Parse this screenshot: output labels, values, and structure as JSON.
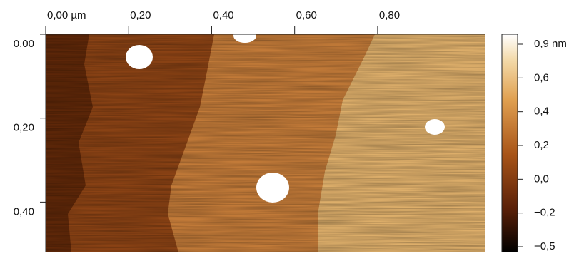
{
  "chart_data": {
    "type": "heatmap",
    "xticks": [
      {
        "value": 0,
        "label": "0,00 µm"
      },
      {
        "value": 0.2,
        "label": "0,20"
      },
      {
        "value": 0.4,
        "label": "0,40"
      },
      {
        "value": 0.6,
        "label": "0,60"
      },
      {
        "value": 0.8,
        "label": "0,80"
      }
    ],
    "xlim": [
      0,
      1.06
    ],
    "yticks": [
      {
        "value": 0,
        "label": "0,00"
      },
      {
        "value": 0.2,
        "label": "0,20"
      },
      {
        "value": 0.4,
        "label": "0,40"
      }
    ],
    "ylim": [
      0,
      0.52
    ],
    "colorbar_ticks": [
      {
        "value": 0.9,
        "label": "0,9 nm"
      },
      {
        "value": 0.6,
        "label": "0,6"
      },
      {
        "value": 0.4,
        "label": "0,4"
      },
      {
        "value": 0.2,
        "label": "0,2"
      },
      {
        "value": 0,
        "label": "0,0"
      },
      {
        "value": -0.2,
        "label": "−0,2"
      },
      {
        "value": -0.5,
        "label": "−0,5"
      }
    ]
  }
}
